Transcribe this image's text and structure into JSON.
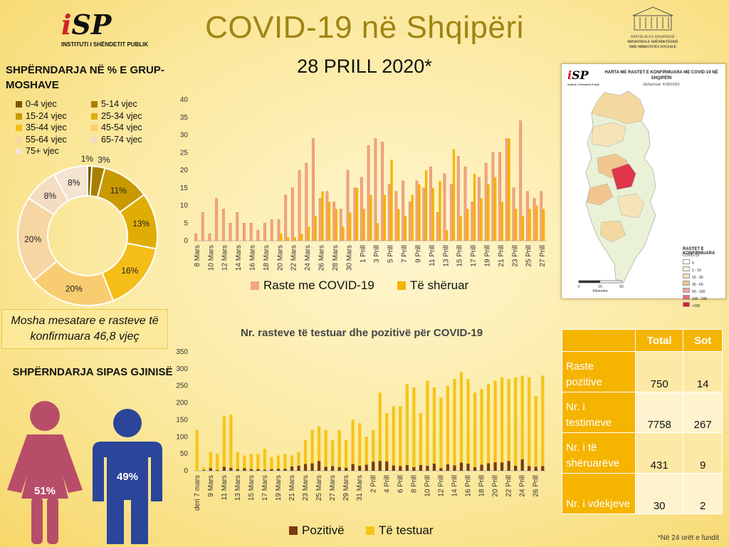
{
  "header": {
    "title": "COVID-19 në Shqipëri",
    "date": "28 PRILL 2020*",
    "logo_name": "INSTITUTI I SHËNDETIT PUBLIK",
    "ministry_lines": [
      "REPUBLIKA E SHQIPËRISË",
      "MINISTRIA E SHËNDETËSISË",
      "DHE MBROJTJES SOCIALE"
    ]
  },
  "age": {
    "title": "SHPËRNDARJA NË % E GRUP-MOSHAVE",
    "legend": [
      "0-4 vjec",
      "5-14 vjec",
      "15-24 vjec",
      "25-34 vjec",
      "35-44 vjec",
      "45-54 vjec",
      "55-64 vjec",
      "65-74 vjec",
      "75+ vjec"
    ],
    "mean_text": "Mosha mesatare e rasteve të konfirmuara 46,8 vjeç"
  },
  "gender": {
    "title": "SHPËRNDARJA SIPAS GJINISË",
    "female": "51%",
    "male": "49%",
    "female_color": "#b84d6a",
    "male_color": "#2a4599"
  },
  "map": {
    "title": "HARTA ME RASTET E KONFIRMUARA ME COVID-19 NË SHQIPËRI",
    "subtitle": "(Azhurnuar: 4/28/2020)",
    "logo_caption": "Instituti i Shëndetit Publik",
    "legend_title": "RASTET E KONFIRMUARA",
    "legend_sub": "COVID-19",
    "legend_classes": [
      "0",
      "1 - 10",
      "10 - 30",
      "30 - 60",
      "60 - 100",
      "100 - 200",
      ">200"
    ],
    "scale": [
      "0",
      "25",
      "50"
    ],
    "scale_unit": "Kilometra"
  },
  "table": {
    "headers": [
      "",
      "Total",
      "Sot"
    ],
    "rows": [
      {
        "label": "Raste pozitive",
        "total": "750",
        "today": "14"
      },
      {
        "label": "Nr. i testimeve",
        "total": "7758",
        "today": "267"
      },
      {
        "label": "Nr. i të shëruarëve",
        "total": "431",
        "today": "9"
      },
      {
        "label": "Nr. i vdekjeve",
        "total": "30",
        "today": "2"
      }
    ]
  },
  "footnote": "*Në 24 orët e fundit",
  "colors": {
    "accent": "#f5b400",
    "cases": "#f4a582",
    "recovered": "#f5b400",
    "positive": "#7a3b0e",
    "tested": "#f5c518",
    "title": "#a08413"
  },
  "chart_data": [
    {
      "type": "pie",
      "variant": "donut",
      "categories": [
        "0-4 vjec",
        "5-14 vjec",
        "15-24 vjec",
        "25-34 vjec",
        "35-44 vjec",
        "45-54 vjec",
        "55-64 vjec",
        "65-74 vjec",
        "75+ vjec"
      ],
      "values": [
        1,
        3,
        11,
        13,
        16,
        20,
        20,
        8,
        8
      ],
      "labels": [
        "1%",
        "3%",
        "11%",
        "13%",
        "16%",
        "20%",
        "20%",
        "8%",
        "8%"
      ],
      "colors": [
        "#7a5a00",
        "#a87f00",
        "#c99a00",
        "#e0ad05",
        "#f5bd17",
        "#f8cc70",
        "#f6d6a2",
        "#f3dcc0",
        "#f4e4d0"
      ]
    },
    {
      "type": "bar",
      "categories": [
        "8 Mars",
        "9 Mars",
        "10 Mars",
        "11 Mars",
        "12 Mars",
        "13 Mars",
        "14 Mars",
        "15 Mars",
        "16 Mars",
        "17 Mars",
        "18 Mars",
        "19 Mars",
        "20 Mars",
        "21 Mars",
        "22 Mars",
        "23 Mars",
        "24 Mars",
        "25 Mars",
        "26 Mars",
        "27 Mars",
        "28 Mars",
        "29 Mars",
        "30 Mars",
        "31 Mars",
        "1 Prill",
        "2 Prill",
        "3 Prill",
        "4 Prill",
        "5 Prill",
        "6 Prill",
        "7 Prill",
        "8 Prill",
        "9 Prill",
        "10 Prill",
        "11 Prill",
        "12 Prill",
        "13 Prill",
        "14 Prill",
        "15 Prill",
        "16 Prill",
        "17 Prill",
        "18 Prill",
        "19 Prill",
        "20 Prill",
        "21 Prill",
        "22 Prill",
        "23 Prill",
        "24 Prill",
        "25 Prill",
        "26 Prill",
        "27 Prill"
      ],
      "tick_labels": [
        "8 Mars",
        "10 Mars",
        "12 Mars",
        "14 Mars",
        "16 Mars",
        "18 Mars",
        "20 Mars",
        "22 Mars",
        "24 Mars",
        "26 Mars",
        "28 Mars",
        "30 Mars",
        "1 Prill",
        "3 Prill",
        "5 Prill",
        "7 Prill",
        "9 Prill",
        "11 Prill",
        "13 Prill",
        "15 Prill",
        "17 Prill",
        "19 Prill",
        "21 Prill",
        "23 Prill",
        "25 Prill",
        "27 Prill"
      ],
      "series": [
        {
          "name": "Raste me COVID-19",
          "values": [
            2,
            8,
            2,
            12,
            9,
            5,
            8,
            5,
            5,
            3,
            5,
            6,
            6,
            13,
            15,
            20,
            22,
            29,
            12,
            14,
            11,
            9,
            20,
            15,
            18,
            27,
            29,
            28,
            16,
            14,
            17,
            11,
            17,
            15,
            21,
            8,
            19,
            16,
            24,
            21,
            11,
            18,
            22,
            25,
            25,
            29,
            15,
            34,
            14,
            12,
            14
          ]
        },
        {
          "name": "Të shëruar",
          "values": [
            0,
            0,
            0,
            0,
            0,
            0,
            0,
            0,
            0,
            0,
            0,
            0,
            2,
            1,
            1,
            2,
            4,
            7,
            14,
            11,
            9,
            4,
            8,
            15,
            9,
            13,
            5,
            13,
            23,
            9,
            7,
            13,
            16,
            20,
            15,
            17,
            3,
            26,
            7,
            9,
            19,
            12,
            16,
            18,
            11,
            29,
            9,
            7,
            9,
            10,
            9
          ]
        }
      ],
      "ylim": [
        0,
        40
      ],
      "yticks": [
        0,
        5,
        10,
        15,
        20,
        25,
        30,
        35,
        40
      ]
    },
    {
      "type": "bar",
      "stacked": true,
      "title": "Nr. rasteve të testuar dhe pozitivë për COVID-19",
      "categories": [
        "deri 7 mars",
        "8 Mars",
        "9 Mars",
        "10 Mars",
        "11 Mars",
        "12 Mars",
        "13 Mars",
        "14 Mars",
        "15 Mars",
        "16 Mars",
        "17 Mars",
        "18 Mars",
        "19 Mars",
        "20 Mars",
        "21 Mars",
        "22 Mars",
        "23 Mars",
        "24 Mars",
        "25 Mars",
        "26 Mars",
        "27 Mars",
        "28 Mars",
        "29 Mars",
        "30 Mars",
        "31 Mars",
        "1 Prill",
        "2 Prill",
        "3 Prill",
        "4 Prill",
        "5 Prill",
        "6 Prill",
        "7 Prill",
        "8 Prill",
        "9 Prill",
        "10 Prill",
        "11 Prill",
        "12 Prill",
        "13 Prill",
        "14 Prill",
        "15 Prill",
        "16 Prill",
        "17 Prill",
        "18 Prill",
        "19 Prill",
        "20 Prill",
        "21 Prill",
        "22 Prill",
        "23 Prill",
        "24 Prill",
        "25 Prill",
        "26 Prill",
        "27 Prill"
      ],
      "tick_labels": [
        "deri 7 mars",
        "9 Mars",
        "11 Mars",
        "13 Mars",
        "15 Mars",
        "17 Mars",
        "19 Mars",
        "21 Mars",
        "23 Mars",
        "25 Mars",
        "27 Mars",
        "29 Mars",
        "31 Mars",
        "2 Prill",
        "4 Prill",
        "6 Prill",
        "8 Prill",
        "10 Prill",
        "12 Prill",
        "14 Prill",
        "16 Prill",
        "18 Prill",
        "20 Prill",
        "22 Prill",
        "24 Prill",
        "26 Prill"
      ],
      "series": [
        {
          "name": "Pozitivë",
          "values": [
            0,
            2,
            8,
            2,
            12,
            9,
            5,
            8,
            5,
            5,
            3,
            5,
            6,
            6,
            13,
            15,
            20,
            22,
            29,
            12,
            14,
            11,
            9,
            20,
            15,
            18,
            27,
            29,
            28,
            16,
            14,
            17,
            11,
            17,
            15,
            21,
            8,
            19,
            16,
            24,
            21,
            11,
            18,
            22,
            25,
            25,
            29,
            15,
            34,
            14,
            12,
            14
          ]
        },
        {
          "name": "Të testuar",
          "values": [
            120,
            10,
            55,
            50,
            160,
            165,
            55,
            45,
            50,
            50,
            65,
            40,
            45,
            50,
            45,
            55,
            90,
            120,
            130,
            120,
            90,
            120,
            90,
            150,
            140,
            100,
            120,
            230,
            170,
            190,
            190,
            255,
            245,
            170,
            265,
            245,
            215,
            250,
            270,
            290,
            270,
            230,
            240,
            255,
            265,
            275,
            270,
            275,
            280,
            275,
            220,
            280
          ]
        }
      ],
      "ylim": [
        0,
        350
      ],
      "yticks": [
        0,
        50,
        100,
        150,
        200,
        250,
        300,
        350
      ]
    }
  ]
}
